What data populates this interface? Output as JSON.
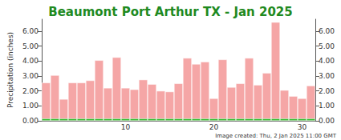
{
  "chart_data": {
    "type": "bar",
    "title": "Beaumont Port Arthur TX - Jan 2025",
    "y_label": "Precipitation (inches)",
    "annotations": [
      "Image created: Thu, 2 Jan 2025 11:00 GMT"
    ],
    "categories": [
      null,
      null,
      null,
      null,
      null,
      null,
      null,
      null,
      null,
      "10",
      null,
      null,
      null,
      null,
      null,
      null,
      null,
      null,
      null,
      "20",
      null,
      null,
      null,
      null,
      null,
      null,
      null,
      null,
      null,
      "30",
      null
    ],
    "series": [
      {
        "color": "#f5a6a6",
        "values": [
          2.55,
          3.05,
          1.45,
          2.55,
          2.55,
          2.7,
          4.05,
          2.2,
          4.25,
          2.2,
          2.1,
          2.75,
          2.45,
          2.0,
          1.95,
          2.5,
          4.2,
          3.8,
          3.95,
          1.5,
          4.1,
          2.25,
          2.5,
          4.2,
          2.4,
          3.2,
          6.6,
          2.05,
          1.65,
          1.5,
          2.35
        ]
      },
      {
        "color": "#2fbf2f",
        "values": [
          0.15,
          0.15,
          0.15,
          0.15,
          0.15,
          0.15,
          0.15,
          0.15,
          0.15,
          0.15,
          0.15,
          0.15,
          0.15,
          0.15,
          0.15,
          0.15,
          0.15,
          0.15,
          0.15,
          0.15,
          0.15,
          0.15,
          0.15,
          0.15,
          0.15,
          0.15,
          0.15,
          0.15,
          0.15,
          0.15,
          0.15
        ]
      }
    ],
    "ylim": [
      0,
      6.8
    ],
    "yticks": [
      {
        "value": 0,
        "label": "0.00"
      },
      {
        "value": 1,
        "label": "1.00"
      },
      {
        "value": 2,
        "label": "2.00"
      },
      {
        "value": 3,
        "label": "3.00"
      },
      {
        "value": 4,
        "label": "4.00"
      },
      {
        "value": 5,
        "label": "5.00"
      },
      {
        "value": 6,
        "label": "6.00"
      }
    ],
    "grid": false
  }
}
